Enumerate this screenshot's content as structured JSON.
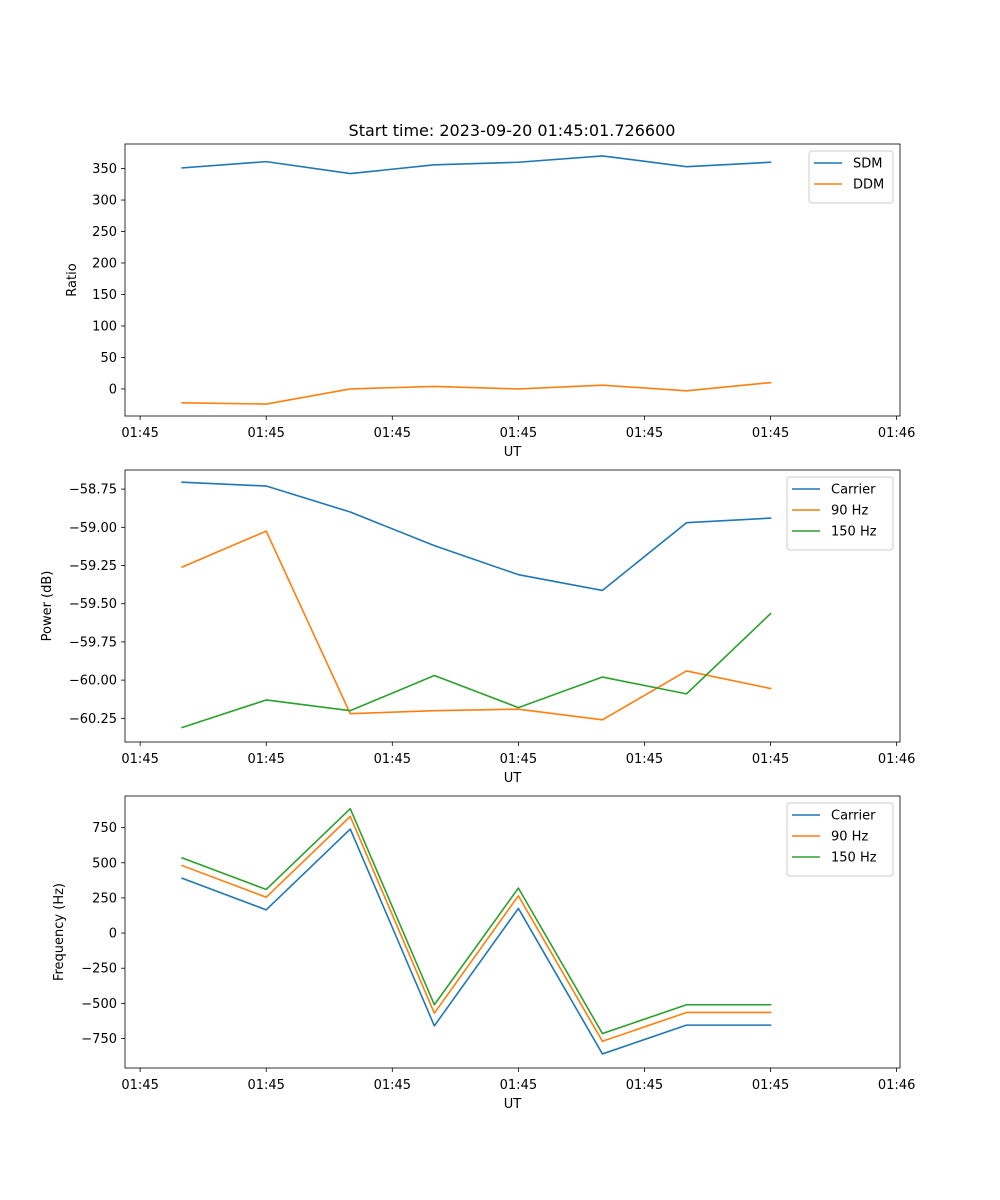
{
  "figure_title": "Start time: 2023-09-20 01:45:01.726600",
  "colors": {
    "blue": "#1f77b4",
    "orange": "#ff7f0e",
    "green": "#2ca02c"
  },
  "chart_data": [
    {
      "type": "line",
      "title": "Start time: 2023-09-20 01:45:01.726600",
      "xlabel": "UT",
      "ylabel": "Ratio",
      "x": [
        1,
        2,
        3,
        4,
        5,
        6,
        7,
        8
      ],
      "xlim": [
        0.32,
        9.54
      ],
      "xticks": [
        0.5,
        2,
        3.5,
        5,
        6.5,
        8,
        9.5
      ],
      "xtick_labels": [
        "01:45",
        "01:45",
        "01:45",
        "01:45",
        "01:45",
        "01:45",
        "01:46"
      ],
      "ylim": [
        -43,
        389
      ],
      "yticks": [
        0,
        50,
        100,
        150,
        200,
        250,
        300,
        350
      ],
      "ytick_labels": [
        "0",
        "50",
        "100",
        "150",
        "200",
        "250",
        "300",
        "350"
      ],
      "legend": "top-right",
      "series": [
        {
          "name": "SDM",
          "color": "#1f77b4",
          "values": [
            351,
            361,
            342,
            356,
            360,
            370,
            353,
            360
          ]
        },
        {
          "name": "DDM",
          "color": "#ff7f0e",
          "values": [
            -22,
            -24,
            0,
            4,
            0,
            6,
            -3,
            10
          ]
        }
      ]
    },
    {
      "type": "line",
      "title": "",
      "xlabel": "UT",
      "ylabel": "Power (dB)",
      "x": [
        1,
        2,
        3,
        4,
        5,
        6,
        7,
        8
      ],
      "xlim": [
        0.32,
        9.54
      ],
      "xticks": [
        0.5,
        2,
        3.5,
        5,
        6.5,
        8,
        9.5
      ],
      "xtick_labels": [
        "01:45",
        "01:45",
        "01:45",
        "01:45",
        "01:45",
        "01:45",
        "01:46"
      ],
      "ylim": [
        -60.405,
        -58.625
      ],
      "yticks": [
        -60.25,
        -60.0,
        -59.75,
        -59.5,
        -59.25,
        -59.0,
        -58.75
      ],
      "ytick_labels": [
        "−60.25",
        "−60.00",
        "−59.75",
        "−59.50",
        "−59.25",
        "−59.00",
        "−58.75"
      ],
      "legend": "top-right",
      "series": [
        {
          "name": "Carrier",
          "color": "#1f77b4",
          "values": [
            -58.705,
            -58.73,
            -58.9,
            -59.12,
            -59.31,
            -59.413,
            -58.97,
            -58.94
          ]
        },
        {
          "name": "90 Hz",
          "color": "#ff7f0e",
          "values": [
            -59.26,
            -59.025,
            -60.22,
            -60.2,
            -60.19,
            -60.26,
            -59.94,
            -60.055
          ]
        },
        {
          "name": "150 Hz",
          "color": "#2ca02c",
          "values": [
            -60.31,
            -60.13,
            -60.2,
            -59.97,
            -60.18,
            -59.98,
            -60.09,
            -59.565
          ]
        }
      ]
    },
    {
      "type": "line",
      "title": "",
      "xlabel": "UT",
      "ylabel": "Frequency (Hz)",
      "x": [
        1,
        2,
        3,
        4,
        5,
        6,
        7,
        8
      ],
      "xlim": [
        0.32,
        9.54
      ],
      "xticks": [
        0.5,
        2,
        3.5,
        5,
        6.5,
        8,
        9.5
      ],
      "xtick_labels": [
        "01:45",
        "01:45",
        "01:45",
        "01:45",
        "01:45",
        "01:45",
        "01:46"
      ],
      "ylim": [
        -960,
        975
      ],
      "yticks": [
        -750,
        -500,
        -250,
        0,
        250,
        500,
        750
      ],
      "ytick_labels": [
        "−750",
        "−500",
        "−250",
        "0",
        "250",
        "500",
        "750"
      ],
      "legend": "top-right",
      "series": [
        {
          "name": "Carrier",
          "color": "#1f77b4",
          "values": [
            390,
            165,
            740,
            -660,
            175,
            -860,
            -655,
            -655
          ]
        },
        {
          "name": "90 Hz",
          "color": "#ff7f0e",
          "values": [
            480,
            255,
            830,
            -570,
            265,
            -770,
            -565,
            -565
          ]
        },
        {
          "name": "150 Hz",
          "color": "#2ca02c",
          "values": [
            535,
            310,
            885,
            -510,
            320,
            -715,
            -510,
            -510
          ]
        }
      ]
    }
  ]
}
